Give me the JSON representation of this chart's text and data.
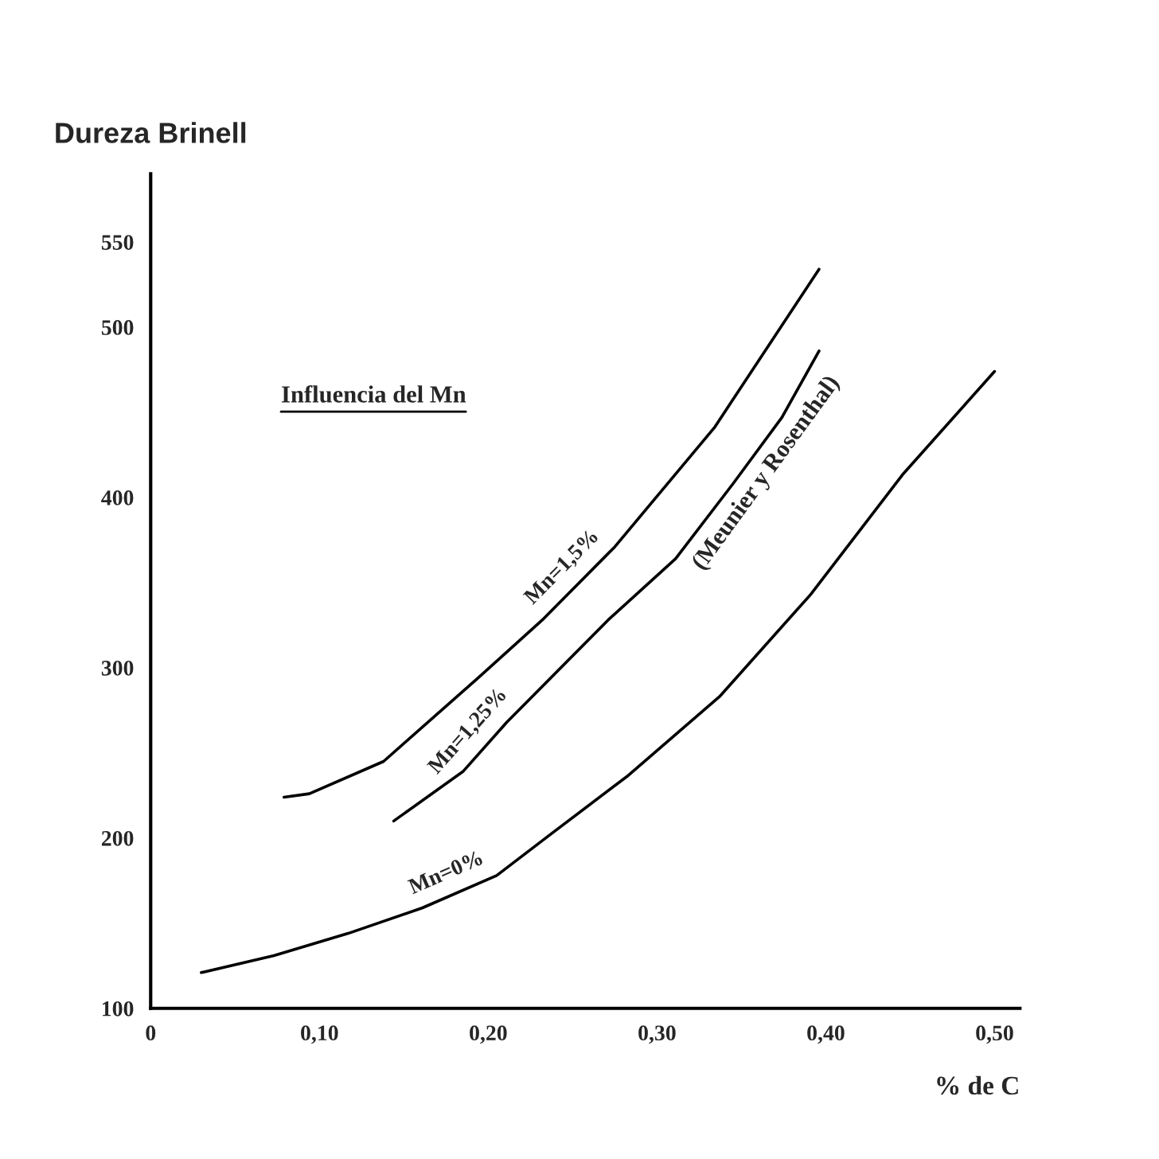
{
  "chart_data": {
    "type": "line",
    "xlabel": "% de C",
    "ylabel": "Dureza Brinell",
    "annotations": [
      "Influencia del Mn",
      "(Meunier y Rosenthal)"
    ],
    "xlim": [
      0,
      0.515
    ],
    "ylim": [
      100,
      590
    ],
    "xticks": [
      {
        "value": 0,
        "label": "0"
      },
      {
        "value": 0.1,
        "label": "0,10"
      },
      {
        "value": 0.2,
        "label": "0,20"
      },
      {
        "value": 0.3,
        "label": "0,30"
      },
      {
        "value": 0.4,
        "label": "0,40"
      },
      {
        "value": 0.5,
        "label": "0,50"
      }
    ],
    "yticks": [
      100,
      200,
      300,
      400,
      500,
      550
    ],
    "grid": false,
    "legend": false,
    "series": [
      {
        "name": "Mn=1,5%",
        "color": "#000000",
        "x": [
          0.079,
          0.094,
          0.138,
          0.194,
          0.232,
          0.275,
          0.334,
          0.396
        ],
        "values": [
          224,
          226,
          245,
          294,
          328,
          371,
          441,
          534
        ]
      },
      {
        "name": "Mn=1,25%",
        "color": "#000000",
        "x": [
          0.144,
          0.185,
          0.211,
          0.271,
          0.311,
          0.345,
          0.374,
          0.396
        ],
        "values": [
          210,
          239,
          268,
          328,
          364,
          408,
          447,
          486
        ]
      },
      {
        "name": "Mn=0%",
        "color": "#000000",
        "x": [
          0.03,
          0.073,
          0.117,
          0.161,
          0.205,
          0.238,
          0.282,
          0.337,
          0.391,
          0.446,
          0.5
        ],
        "values": [
          121,
          131,
          144,
          159,
          178,
          203,
          236,
          283,
          343,
          414,
          474
        ]
      }
    ]
  }
}
